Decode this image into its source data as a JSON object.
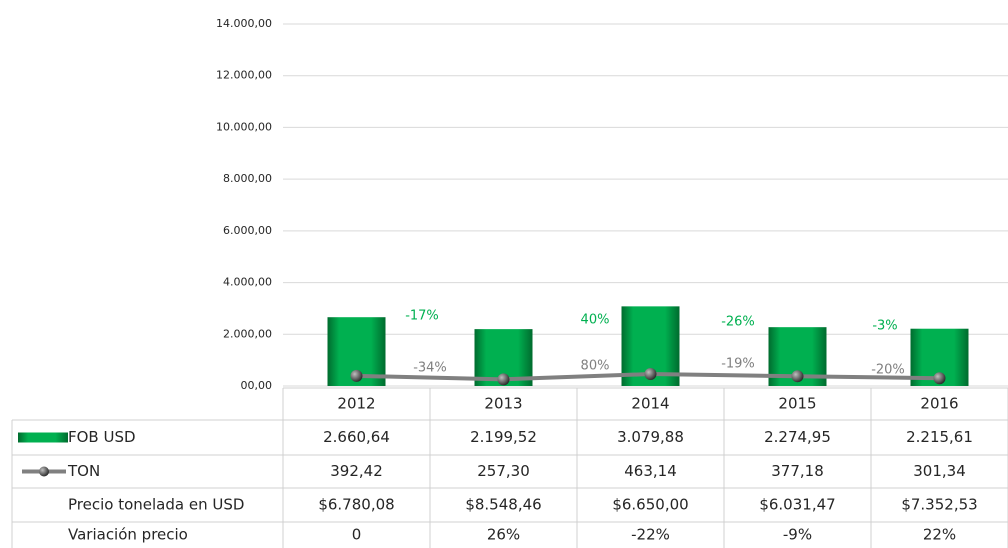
{
  "chart_data": {
    "type": "bar",
    "categories": [
      "2012",
      "2013",
      "2014",
      "2015",
      "2016"
    ],
    "series": [
      {
        "name": "FOB USD",
        "color": "#00b050",
        "values": [
          2660.64,
          2199.52,
          3079.88,
          2274.95,
          2215.61
        ],
        "value_labels": [
          "2.660,64",
          "2.199,52",
          "3.079,88",
          "2.274,95",
          "2.215,61"
        ]
      },
      {
        "name": "TON",
        "type": "line",
        "color": "#808080",
        "marker_color": "#404040",
        "values": [
          392.42,
          257.3,
          463.14,
          377.18,
          301.34
        ],
        "value_labels": [
          "392,42",
          "257,30",
          "463,14",
          "377,18",
          "301,34"
        ]
      }
    ],
    "ylim": [
      0,
      14000
    ],
    "yticks": [
      {
        "value": 0,
        "label": "00,00"
      },
      {
        "value": 2000,
        "label": "2.000,00"
      },
      {
        "value": 4000,
        "label": "4.000,00"
      },
      {
        "value": 6000,
        "label": "6.000,00"
      },
      {
        "value": 8000,
        "label": "8.000,00"
      },
      {
        "value": 10000,
        "label": "10.000,00"
      },
      {
        "value": 12000,
        "label": "12.000,00"
      },
      {
        "value": 14000,
        "label": "14.000,00"
      }
    ],
    "grid": true,
    "annotations": [
      {
        "text": "-17%",
        "color": "#00b050"
      },
      {
        "text": "40%",
        "color": "#00b050"
      },
      {
        "text": "-26%",
        "color": "#00b050"
      },
      {
        "text": "-3%",
        "color": "#00b050"
      },
      {
        "text": "-34%",
        "color": "#808080"
      },
      {
        "text": "80%",
        "color": "#808080"
      },
      {
        "text": "-19%",
        "color": "#808080"
      },
      {
        "text": "-20%",
        "color": "#808080"
      }
    ],
    "table_rows": [
      {
        "label": "Precio tonelada en USD",
        "cells": [
          "$6.780,08",
          "$8.548,46",
          "$6.650,00",
          "$6.031,47",
          "$7.352,53"
        ]
      },
      {
        "label": "Variación precio",
        "cells": [
          "0",
          "26%",
          "-22%",
          "-9%",
          "22%"
        ]
      }
    ]
  }
}
